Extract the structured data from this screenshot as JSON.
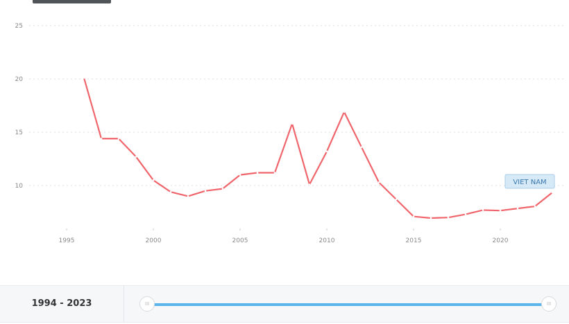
{
  "chart_data": {
    "type": "line",
    "title": "",
    "xlabel": "",
    "ylabel": "",
    "ylim": [
      0,
      25
    ],
    "yticks": [
      10,
      15,
      20,
      25
    ],
    "xticks": [
      1995,
      2000,
      2005,
      2010,
      2015,
      2020
    ],
    "grid": true,
    "x": [
      1996,
      1997,
      1998,
      1999,
      2000,
      2001,
      2002,
      2003,
      2004,
      2005,
      2006,
      2007,
      2008,
      2009,
      2010,
      2011,
      2012,
      2013,
      2014,
      2015,
      2016,
      2017,
      2018,
      2019,
      2020,
      2021,
      2022,
      2023
    ],
    "series": [
      {
        "name": "VIET NAM",
        "color": "#f0656b",
        "values": [
          20.1,
          14.4,
          14.4,
          12.7,
          10.5,
          9.4,
          9.0,
          9.5,
          9.7,
          11.0,
          11.2,
          11.2,
          15.8,
          10.1,
          13.2,
          16.9,
          13.6,
          10.3,
          8.7,
          7.1,
          6.95,
          7.0,
          7.3,
          7.7,
          7.65,
          7.85,
          8.05,
          9.35
        ]
      }
    ]
  },
  "slider": {
    "range_label": "1994 - 2023",
    "start": 1994,
    "end": 2023,
    "handle_glyph": "III",
    "accent": "#5bb4ec"
  }
}
